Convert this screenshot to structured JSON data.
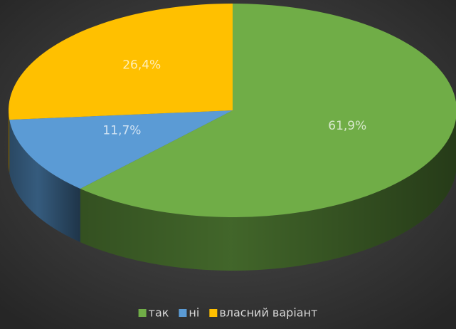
{
  "chart_data": {
    "type": "pie",
    "categories": [
      "так",
      "ні",
      "власний варіант"
    ],
    "values": [
      61.9,
      11.7,
      26.4
    ],
    "value_labels": [
      "61,9%",
      "11,7%",
      "26,4%"
    ],
    "colors": [
      "#70ad47",
      "#5b9bd5",
      "#ffc000"
    ],
    "legend": "bottom"
  }
}
